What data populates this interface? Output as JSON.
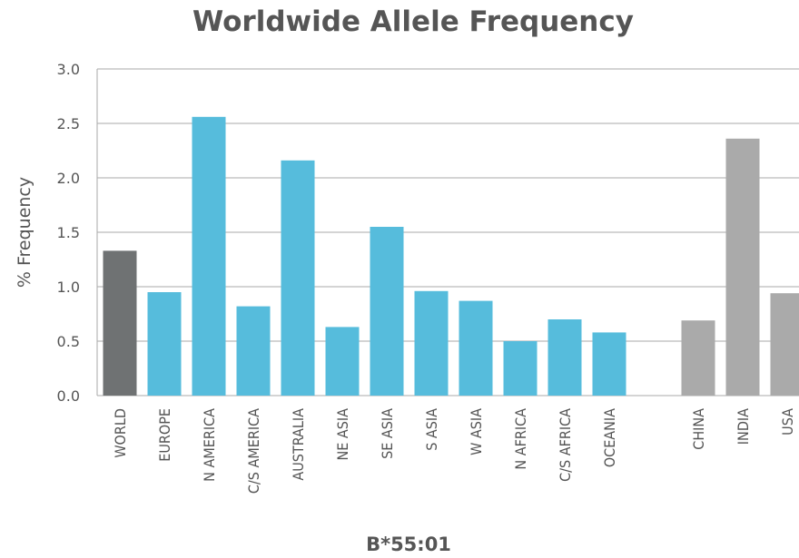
{
  "chart_data": {
    "type": "bar",
    "title": "Worldwide Allele Frequency",
    "xlabel": "B*55:01",
    "ylabel": "% Frequency",
    "ylim": [
      0,
      3.0
    ],
    "yticks": [
      "0.0",
      "0.5",
      "1.0",
      "1.5",
      "2.0",
      "2.5",
      "3.0"
    ],
    "grid": true,
    "categories": [
      "WORLD",
      "EUROPE",
      "N AMERICA",
      "C/S AMERICA",
      "AUSTRALIA",
      "NE ASIA",
      "SE ASIA",
      "S ASIA",
      "W ASIA",
      "N AFRICA",
      "C/S AFRICA",
      "OCEANIA",
      "",
      "CHINA",
      "INDIA",
      "USA"
    ],
    "values": [
      1.33,
      0.95,
      2.56,
      0.82,
      2.16,
      0.63,
      1.55,
      0.96,
      0.87,
      0.5,
      0.7,
      0.58,
      null,
      0.69,
      2.36,
      0.94
    ],
    "bar_colors": [
      "#6f7273",
      "#56bcdc",
      "#56bcdc",
      "#56bcdc",
      "#56bcdc",
      "#56bcdc",
      "#56bcdc",
      "#56bcdc",
      "#56bcdc",
      "#56bcdc",
      "#56bcdc",
      "#56bcdc",
      "",
      "#aaaaaa",
      "#aaaaaa",
      "#aaaaaa"
    ]
  }
}
